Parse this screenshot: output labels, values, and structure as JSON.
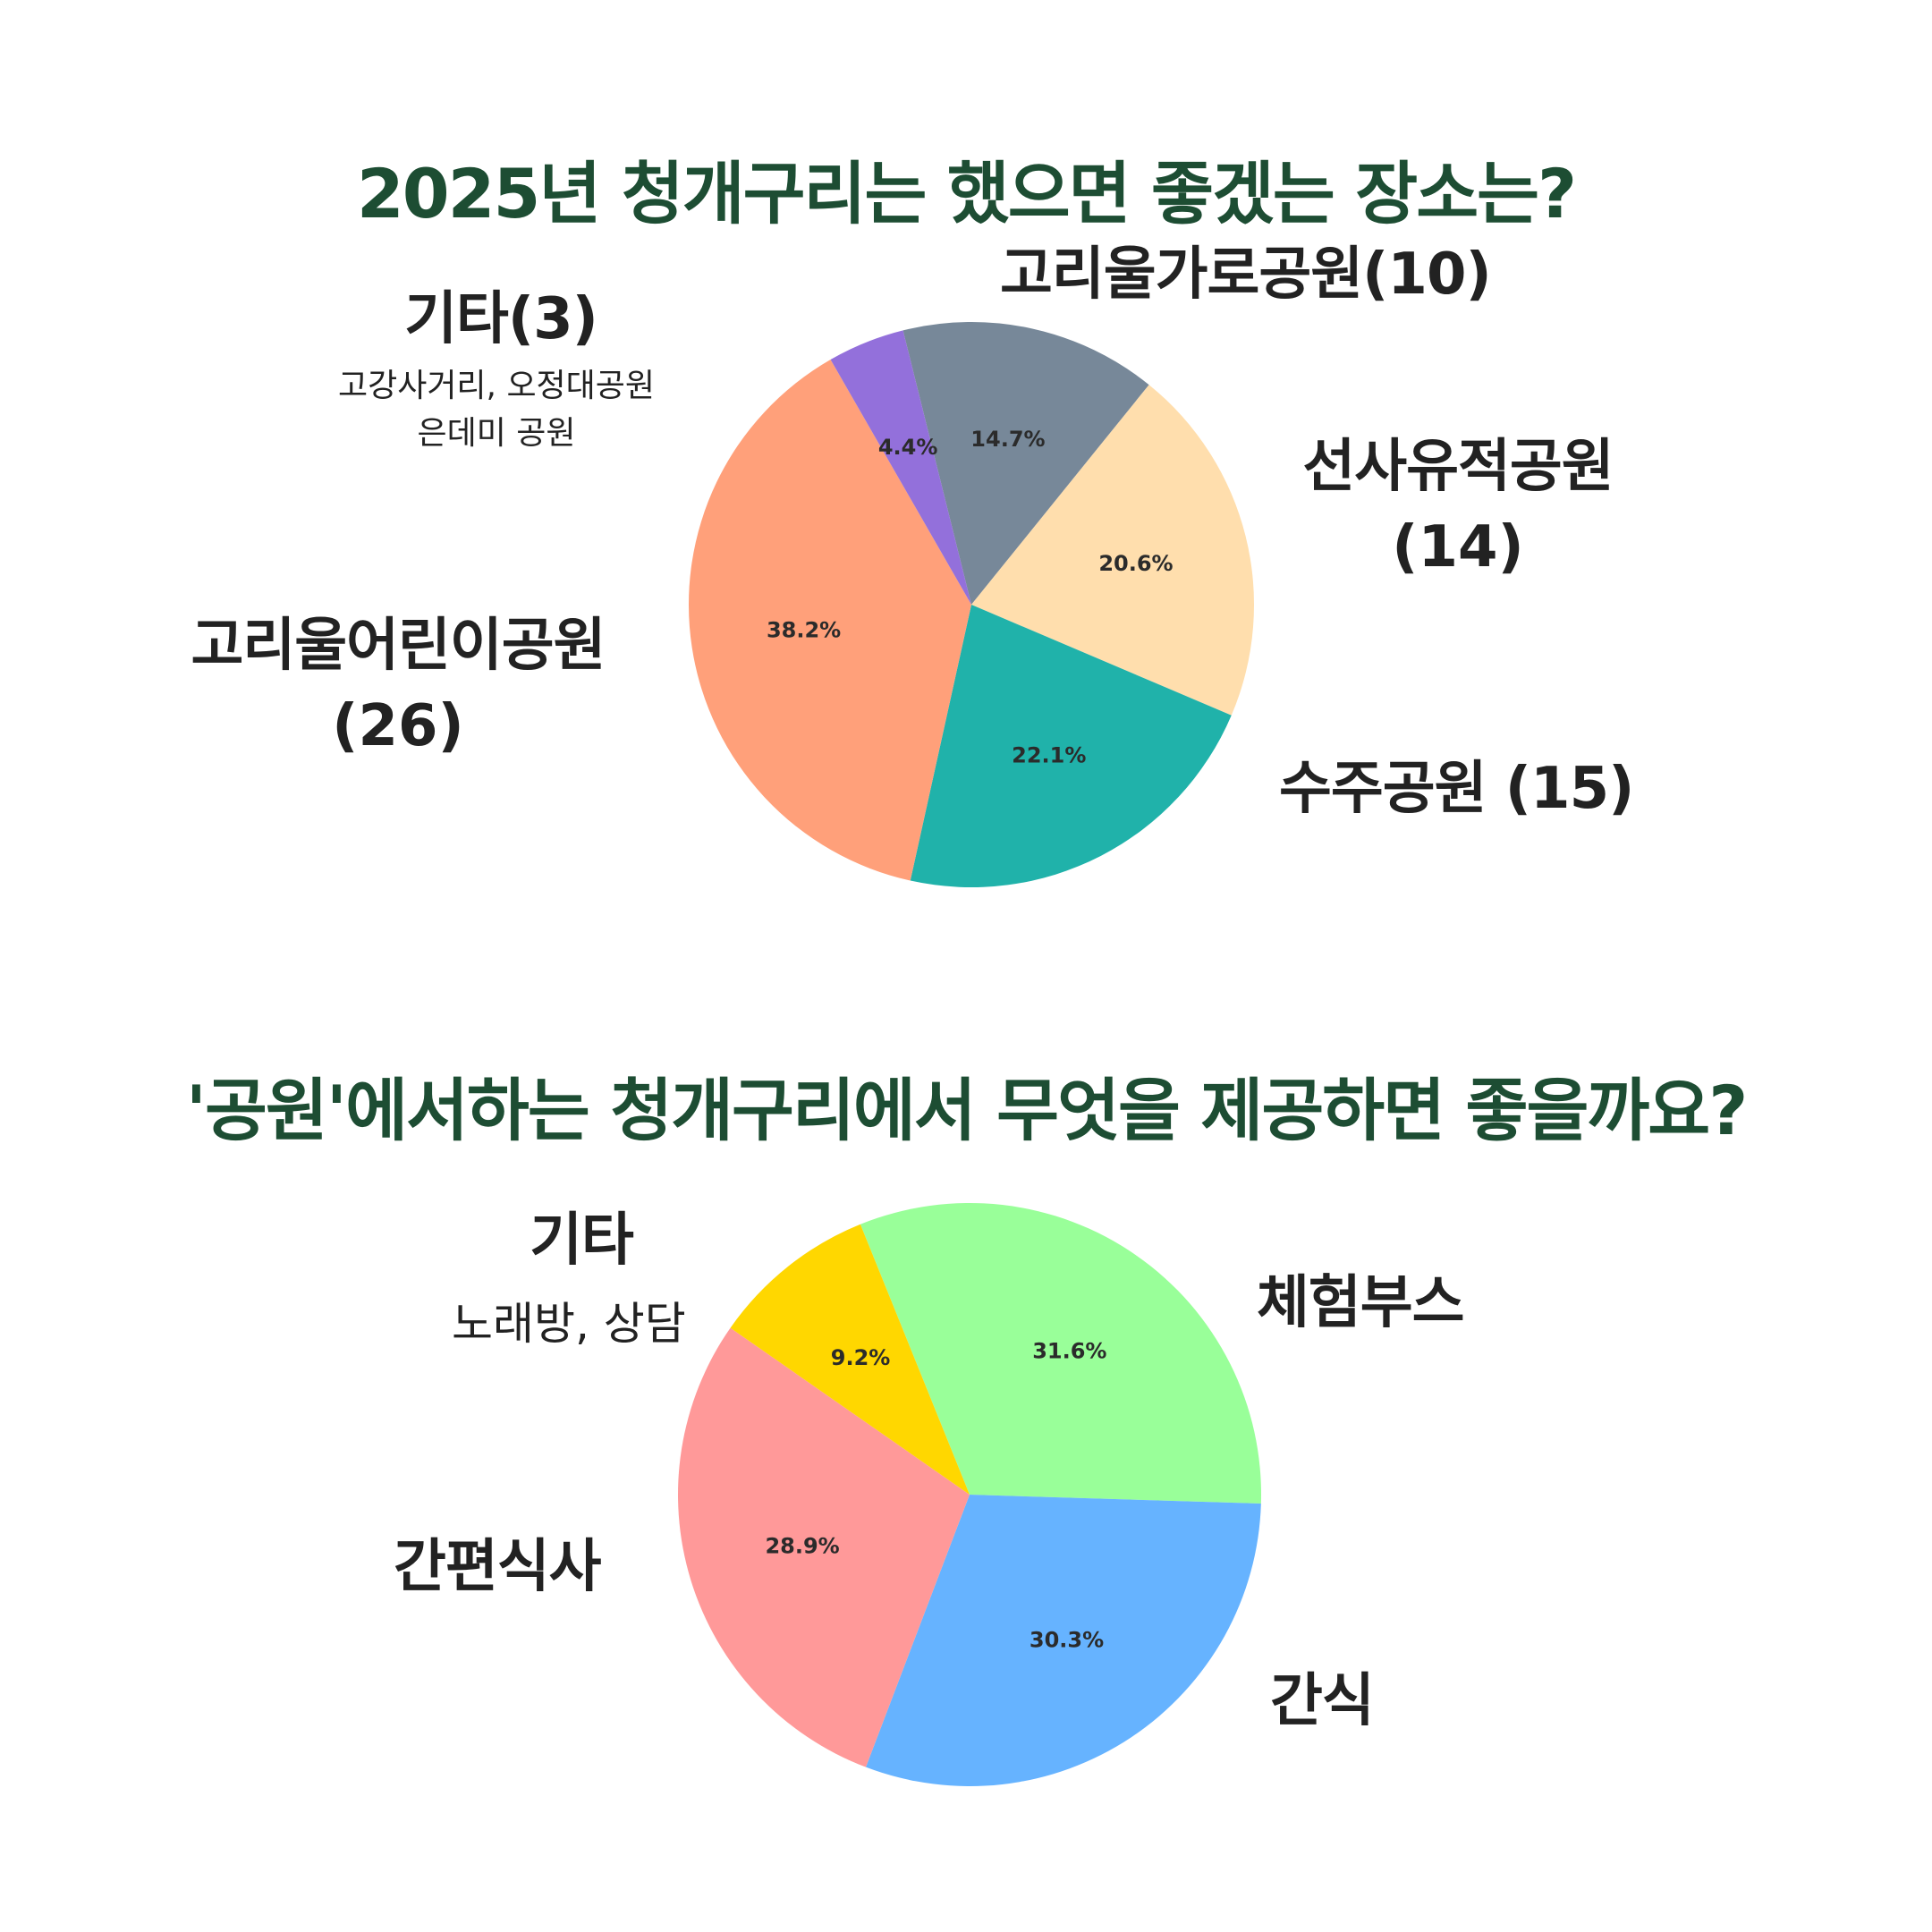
{
  "charts": {
    "top": {
      "title": "2025년 청개구리는 했으면 좋겠는 장소는?",
      "labels": {
        "gita": "기타(3)",
        "gita_sub1": "고강사거리, 오정대공원",
        "gita_sub2": "은데미 공원",
        "goriul_garo": "고리울가로공원(10)",
        "seonsa": "선사유적공원",
        "seonsa_count": "(14)",
        "goriul_child": "고리울어린이공원",
        "goriul_child_count": "(26)",
        "suju": "수주공원 (15)"
      }
    },
    "bottom": {
      "title": "'공원'에서하는 청개구리에서 무엇을 제공하면 좋을까요?",
      "labels": {
        "gita": "기타",
        "gita_sub": "노래방, 상담",
        "experience": "체험부스",
        "meal": "간편식사",
        "snack": "간식"
      }
    }
  },
  "chart_data": [
    {
      "type": "pie",
      "title": "2025년 청개구리는 했으면 좋겠는 장소는?",
      "slices": [
        {
          "label": "고리울가로공원",
          "value": 10,
          "percent": "14.7%",
          "color": "#778899"
        },
        {
          "label": "선사유적공원",
          "value": 14,
          "percent": "20.6%",
          "color": "#ffdead"
        },
        {
          "label": "수주공원",
          "value": 15,
          "percent": "22.1%",
          "color": "#20b2aa"
        },
        {
          "label": "고리울어린이공원",
          "value": 26,
          "percent": "38.2%",
          "color": "#ffa07a"
        },
        {
          "label": "기타",
          "value": 3,
          "percent": "4.4%",
          "color": "#9370db"
        }
      ]
    },
    {
      "type": "pie",
      "title": "'공원'에서하는 청개구리에서 무엇을 제공하면 좋을까요?",
      "slices": [
        {
          "label": "체험부스",
          "value": 31.6,
          "percent": "31.6%",
          "color": "#99ff99"
        },
        {
          "label": "간식",
          "value": 30.3,
          "percent": "30.3%",
          "color": "#66b3ff"
        },
        {
          "label": "간편식사",
          "value": 28.9,
          "percent": "28.9%",
          "color": "#ff9999"
        },
        {
          "label": "기타",
          "value": 9.2,
          "percent": "9.2%",
          "color": "#ffd700"
        }
      ]
    }
  ]
}
